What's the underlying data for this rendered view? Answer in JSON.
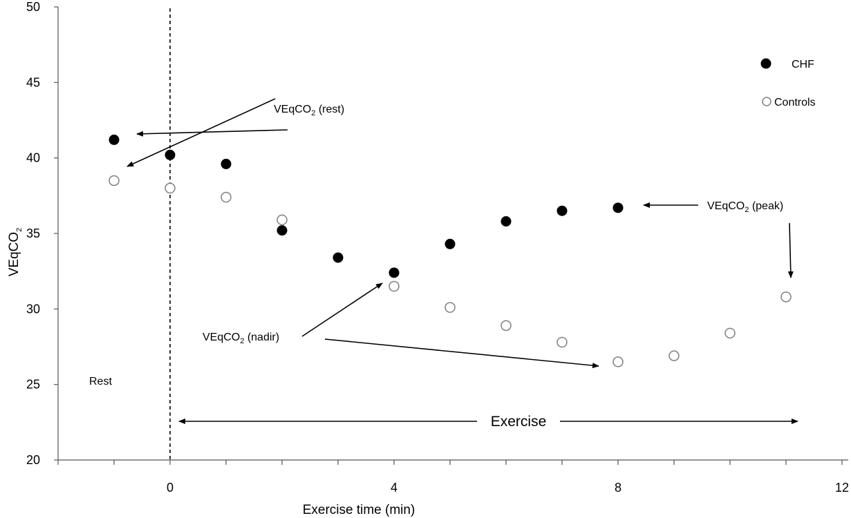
{
  "chart_data": {
    "type": "scatter",
    "xlabel": "Exercise time (min)",
    "ylabel": "VEqCO2",
    "xlim": [
      -2,
      12
    ],
    "ylim": [
      20,
      50
    ],
    "x_ticks": [
      0,
      4,
      8,
      12
    ],
    "y_ticks": [
      20,
      25,
      30,
      35,
      40,
      45,
      50
    ],
    "grid": false,
    "legend_position": "top-right",
    "series": [
      {
        "name": "CHF",
        "marker": "filled-circle",
        "color": "#000000",
        "points": [
          {
            "x": -1,
            "y": 41.2
          },
          {
            "x": 0,
            "y": 40.2
          },
          {
            "x": 1,
            "y": 39.6
          },
          {
            "x": 2,
            "y": 35.2
          },
          {
            "x": 3,
            "y": 33.4
          },
          {
            "x": 4,
            "y": 32.4
          },
          {
            "x": 5,
            "y": 34.3
          },
          {
            "x": 6,
            "y": 35.8
          },
          {
            "x": 7,
            "y": 36.5
          },
          {
            "x": 8,
            "y": 36.7
          }
        ]
      },
      {
        "name": "Controls",
        "marker": "open-circle",
        "color": "#7f7f7f",
        "points": [
          {
            "x": -1,
            "y": 38.5
          },
          {
            "x": 0,
            "y": 38.0
          },
          {
            "x": 1,
            "y": 37.4
          },
          {
            "x": 2,
            "y": 35.9
          },
          {
            "x": 4,
            "y": 31.5
          },
          {
            "x": 5,
            "y": 30.1
          },
          {
            "x": 6,
            "y": 28.9
          },
          {
            "x": 7,
            "y": 27.8
          },
          {
            "x": 8,
            "y": 26.5
          },
          {
            "x": 9,
            "y": 26.9
          },
          {
            "x": 10,
            "y": 28.4
          },
          {
            "x": 11,
            "y": 30.8
          }
        ]
      }
    ],
    "annotations": {
      "rest_label": "VEqCO",
      "rest_sub": "2",
      "rest_suffix": " (rest)",
      "peak_label": "VEqCO",
      "peak_sub": "2",
      "peak_suffix": " (peak)",
      "nadir_label": "VEqCO",
      "nadir_sub": "2",
      "nadir_suffix": " (nadir)",
      "rest_region": "Rest",
      "exercise_region": "Exercise"
    }
  }
}
